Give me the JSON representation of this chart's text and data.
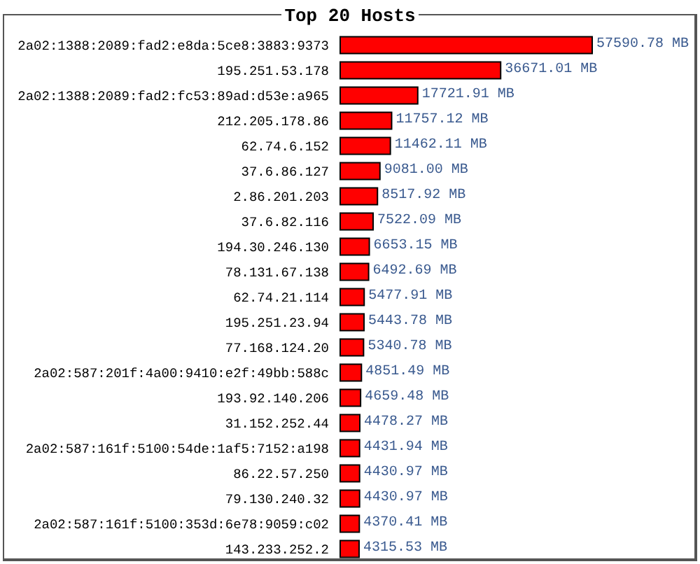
{
  "chart_data": {
    "type": "bar",
    "orientation": "horizontal",
    "title": "Top 20 Hosts",
    "categories": [
      "2a02:1388:2089:fad2:e8da:5ce8:3883:9373",
      "195.251.53.178",
      "2a02:1388:2089:fad2:fc53:89ad:d53e:a965",
      "212.205.178.86",
      "62.74.6.152",
      "37.6.86.127",
      "2.86.201.203",
      "37.6.82.116",
      "194.30.246.130",
      "78.131.67.138",
      "62.74.21.114",
      "195.251.23.94",
      "77.168.124.20",
      "2a02:587:201f:4a00:9410:e2f:49bb:588c",
      "193.92.140.206",
      "31.152.252.44",
      "2a02:587:161f:5100:54de:1af5:7152:a198",
      "86.22.57.250",
      "79.130.240.32",
      "2a02:587:161f:5100:353d:6e78:9059:c02",
      "143.233.252.2"
    ],
    "values": [
      57590.78,
      36671.01,
      17721.91,
      11757.12,
      11462.11,
      9081.0,
      8517.92,
      7522.09,
      6653.15,
      6492.69,
      5477.91,
      5443.78,
      5340.78,
      4851.49,
      4659.48,
      4478.27,
      4431.94,
      4430.97,
      4430.97,
      4370.41,
      4315.53
    ],
    "value_labels": [
      "57590.78 MB",
      "36671.01 MB",
      "17721.91 MB",
      "11757.12 MB",
      "11462.11 MB",
      "9081.00 MB",
      "8517.92 MB",
      "7522.09 MB",
      "6653.15 MB",
      "6492.69 MB",
      "5477.91 MB",
      "5443.78 MB",
      "5340.78 MB",
      "4851.49 MB",
      "4659.48 MB",
      "4478.27 MB",
      "4431.94 MB",
      "4430.97 MB",
      "4430.97 MB",
      "4370.41 MB",
      "4315.53 MB"
    ],
    "color": "#ff0000"
  }
}
